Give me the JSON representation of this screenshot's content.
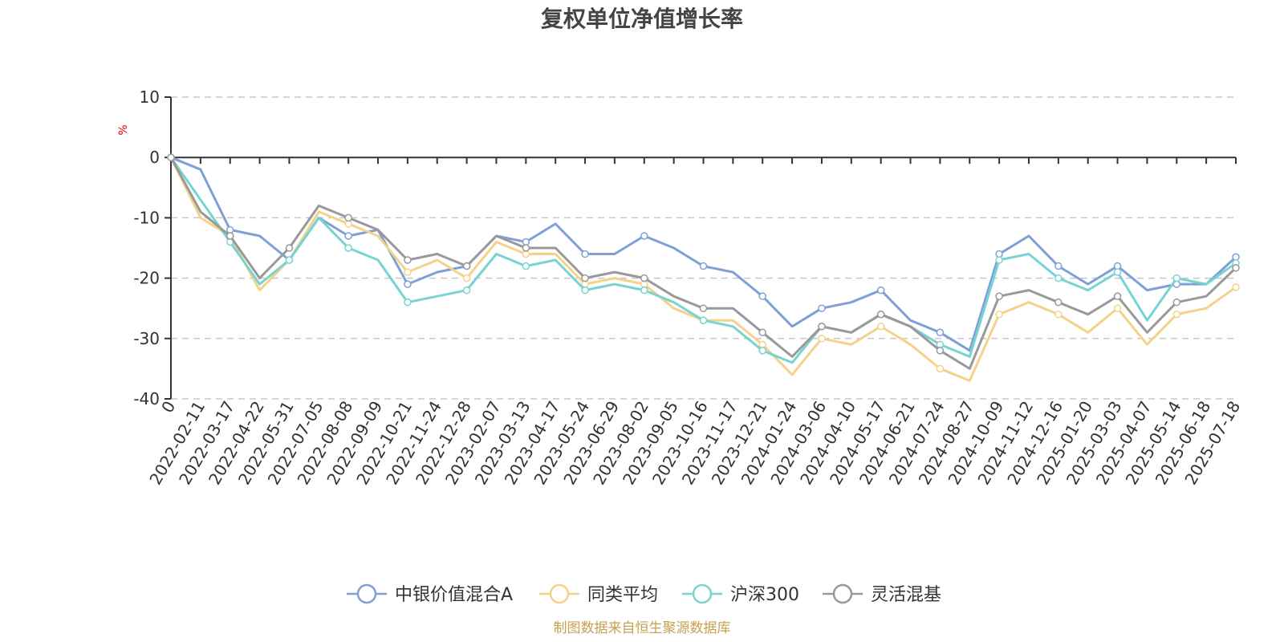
{
  "chart_data": {
    "type": "line",
    "title": "复权单位净值增长率",
    "ylabel": "%",
    "ylim": [
      -40,
      10
    ],
    "yticks": [
      10,
      0,
      -10,
      -20,
      -30,
      -40
    ],
    "grid": true,
    "legend_position": "bottom-center",
    "x": [
      "0",
      "2022-02-11",
      "2022-03-17",
      "2022-04-22",
      "2022-05-31",
      "2022-07-05",
      "2022-08-08",
      "2022-09-09",
      "2022-10-21",
      "2022-11-24",
      "2022-12-28",
      "2023-02-07",
      "2023-03-13",
      "2023-04-17",
      "2023-05-24",
      "2023-06-29",
      "2023-08-02",
      "2023-09-05",
      "2023-10-16",
      "2023-11-17",
      "2023-12-21",
      "2024-01-24",
      "2024-03-06",
      "2024-04-10",
      "2024-05-17",
      "2024-06-21",
      "2024-07-24",
      "2024-08-27",
      "2024-10-09",
      "2024-11-12",
      "2024-12-16",
      "2025-01-20",
      "2025-03-03",
      "2025-04-07",
      "2025-05-14",
      "2025-06-18",
      "2025-07-18"
    ],
    "series": [
      {
        "name": "中银价值混合A",
        "color": "#7f9fd6",
        "values": [
          0,
          -2,
          -12,
          -13,
          -17,
          -10,
          -13,
          -12,
          -21,
          -19,
          -18,
          -13,
          -14,
          -11,
          -16,
          -16,
          -13,
          -15,
          -18,
          -19,
          -23,
          -28,
          -25,
          -24,
          -22,
          -27,
          -29,
          -32,
          -16,
          -13,
          -18,
          -21,
          -18,
          -22,
          -21,
          -21,
          -16.5
        ]
      },
      {
        "name": "同类平均",
        "color": "#f5d28a",
        "values": [
          0,
          -10,
          -13,
          -22,
          -17,
          -9,
          -11,
          -13,
          -19,
          -17,
          -20,
          -14,
          -16,
          -16,
          -21,
          -20,
          -21,
          -25,
          -27,
          -27,
          -31,
          -36,
          -30,
          -31,
          -28,
          -31,
          -35,
          -37,
          -26,
          -24,
          -26,
          -29,
          -25,
          -31,
          -26,
          -25,
          -21.5
        ]
      },
      {
        "name": "沪深300",
        "color": "#78d3d3",
        "values": [
          0,
          -7,
          -14,
          -21,
          -17,
          -10,
          -15,
          -17,
          -24,
          -23,
          -22,
          -16,
          -18,
          -17,
          -22,
          -21,
          -22,
          -24,
          -27,
          -28,
          -32,
          -34,
          -28,
          -29,
          -26,
          -28,
          -31,
          -33,
          -17,
          -16,
          -20,
          -22,
          -19,
          -27,
          -20,
          -21,
          -17.5
        ]
      },
      {
        "name": "灵活混基",
        "color": "#999999",
        "values": [
          0,
          -9,
          -13,
          -20,
          -15,
          -8,
          -10,
          -12,
          -17,
          -16,
          -18,
          -13,
          -15,
          -15,
          -20,
          -19,
          -20,
          -23,
          -25,
          -25,
          -29,
          -33,
          -28,
          -29,
          -26,
          -28,
          -32,
          -35,
          -23,
          -22,
          -24,
          -26,
          -23,
          -29,
          -24,
          -23,
          -18.3
        ]
      }
    ]
  },
  "source_note": "制图数据来自恒生聚源数据库"
}
